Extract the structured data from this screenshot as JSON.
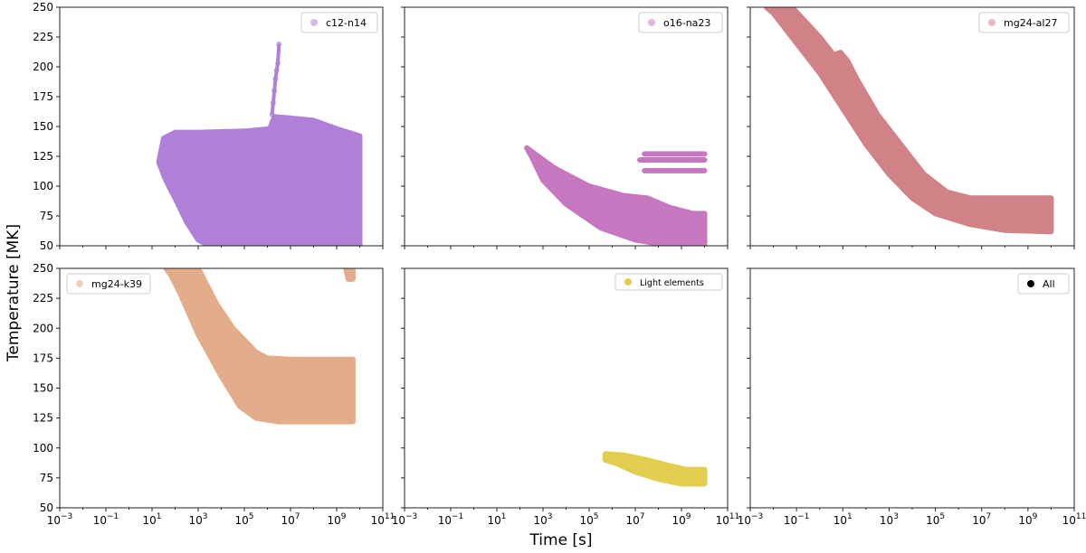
{
  "figure": {
    "ylabel": "Temperature [MK]",
    "xlabel": "Time [s]"
  },
  "chart_data": [
    {
      "type": "scatter",
      "panel": "top-left",
      "legend": "c12-n14",
      "legend_loc": "top-right",
      "color": "#b07fd8",
      "xscale": "log",
      "xlim_log10": [
        -3,
        11
      ],
      "ylim": [
        50,
        250
      ],
      "y_ticks": [
        "50",
        "75",
        "100",
        "125",
        "150",
        "175",
        "200",
        "225",
        "250"
      ],
      "x_ticks": [],
      "regions": [
        {
          "kind": "filled-band",
          "outline": [
            [
              1.3,
              120
            ],
            [
              1.5,
              140
            ],
            [
              2.0,
              145
            ],
            [
              3.0,
              145
            ],
            [
              5.0,
              146
            ],
            [
              6.1,
              148
            ],
            [
              6.3,
              158
            ],
            [
              7.0,
              157
            ],
            [
              8.0,
              155
            ],
            [
              9.0,
              148
            ],
            [
              10.0,
              142
            ],
            [
              10.0,
              50
            ],
            [
              3.5,
              50
            ],
            [
              3.0,
              55
            ],
            [
              2.5,
              70
            ],
            [
              2.0,
              90
            ],
            [
              1.6,
              105
            ]
          ]
        },
        {
          "kind": "spike",
          "points": [
            [
              6.2,
              160
            ],
            [
              6.25,
              170
            ],
            [
              6.3,
              180
            ],
            [
              6.35,
              190
            ],
            [
              6.4,
              197
            ],
            [
              6.45,
              203
            ],
            [
              6.5,
              219
            ]
          ]
        }
      ]
    },
    {
      "type": "scatter",
      "panel": "top-middle",
      "legend": "o16-na23",
      "legend_loc": "top-right",
      "color": "#c777c0",
      "xscale": "log",
      "xlim_log10": [
        -3,
        11
      ],
      "ylim": [
        50,
        250
      ],
      "y_ticks": [],
      "x_ticks": [],
      "regions": [
        {
          "kind": "filled-band",
          "outline": [
            [
              2.3,
              132
            ],
            [
              3.5,
              115
            ],
            [
              5.0,
              100
            ],
            [
              6.5,
              92
            ],
            [
              7.5,
              90
            ],
            [
              8.5,
              82
            ],
            [
              9.5,
              77
            ],
            [
              10.0,
              77
            ],
            [
              10.0,
              50
            ],
            [
              8.5,
              50
            ],
            [
              7.0,
              55
            ],
            [
              5.5,
              65
            ],
            [
              4.0,
              85
            ],
            [
              3.0,
              105
            ],
            [
              2.5,
              125
            ]
          ]
        },
        {
          "kind": "line",
          "points": [
            [
              7.4,
              127
            ],
            [
              10.0,
              127
            ]
          ]
        },
        {
          "kind": "line",
          "points": [
            [
              7.2,
              122
            ],
            [
              10.0,
              122
            ]
          ]
        },
        {
          "kind": "line",
          "points": [
            [
              7.4,
              113
            ],
            [
              10.0,
              113
            ]
          ]
        }
      ]
    },
    {
      "type": "scatter",
      "panel": "top-right",
      "legend": "mg24-al27",
      "legend_loc": "top-right",
      "color": "#d08287",
      "xscale": "log",
      "xlim_log10": [
        -3,
        11
      ],
      "ylim": [
        50,
        250
      ],
      "y_ticks": [],
      "x_ticks": [],
      "regions": [
        {
          "kind": "filled-band",
          "outline": [
            [
              -2.3,
              250
            ],
            [
              -1.2,
              250
            ],
            [
              0.0,
              225
            ],
            [
              0.6,
              210
            ],
            [
              0.9,
              212
            ],
            [
              1.2,
              205
            ],
            [
              1.6,
              190
            ],
            [
              2.5,
              160
            ],
            [
              3.5,
              135
            ],
            [
              4.5,
              110
            ],
            [
              5.5,
              95
            ],
            [
              6.5,
              90
            ],
            [
              8.0,
              90
            ],
            [
              10.0,
              90
            ],
            [
              10.0,
              62
            ],
            [
              8.0,
              63
            ],
            [
              6.5,
              68
            ],
            [
              5.0,
              77
            ],
            [
              4.0,
              90
            ],
            [
              3.0,
              110
            ],
            [
              2.0,
              135
            ],
            [
              1.0,
              165
            ],
            [
              0.0,
              195
            ],
            [
              -1.0,
              220
            ],
            [
              -2.0,
              245
            ]
          ]
        }
      ]
    },
    {
      "type": "scatter",
      "panel": "bottom-left",
      "legend": "mg24-k39",
      "legend_loc": "top-left",
      "color": "#e3ac8a",
      "xscale": "log",
      "xlim_log10": [
        -3,
        11
      ],
      "ylim": [
        50,
        250
      ],
      "y_ticks": [
        "50",
        "75",
        "100",
        "125",
        "150",
        "175",
        "200",
        "225",
        "250"
      ],
      "x_ticks": [
        "10−3",
        "10−1",
        "101",
        "103",
        "105",
        "107",
        "109",
        "1011"
      ],
      "regions": [
        {
          "kind": "filled-band",
          "outline": [
            [
              1.6,
              250
            ],
            [
              3.0,
              250
            ],
            [
              3.8,
              220
            ],
            [
              4.5,
              200
            ],
            [
              5.0,
              190
            ],
            [
              5.5,
              180
            ],
            [
              6.0,
              175
            ],
            [
              7.0,
              174
            ],
            [
              8.0,
              174
            ],
            [
              9.0,
              174
            ],
            [
              9.7,
              174
            ],
            [
              9.7,
              122
            ],
            [
              8.0,
              122
            ],
            [
              6.5,
              122
            ],
            [
              5.5,
              125
            ],
            [
              4.8,
              135
            ],
            [
              4.0,
              160
            ],
            [
              3.0,
              195
            ],
            [
              2.2,
              230
            ],
            [
              1.8,
              245
            ]
          ]
        },
        {
          "kind": "filled-band",
          "outline": [
            [
              9.4,
              250
            ],
            [
              9.7,
              250
            ],
            [
              9.7,
              241
            ],
            [
              9.5,
              241
            ]
          ]
        }
      ]
    },
    {
      "type": "scatter",
      "panel": "bottom-middle",
      "legend": "Light elements",
      "legend_loc": "top-right",
      "color": "#e2cd4f",
      "xscale": "log",
      "xlim_log10": [
        -3,
        11
      ],
      "ylim": [
        50,
        250
      ],
      "y_ticks": [],
      "x_ticks": [
        "10−3",
        "10−1",
        "101",
        "103",
        "105",
        "107",
        "109",
        "1011"
      ],
      "regions": [
        {
          "kind": "filled-band",
          "outline": [
            [
              5.7,
              95
            ],
            [
              6.5,
              94
            ],
            [
              7.5,
              90
            ],
            [
              8.5,
              85
            ],
            [
              9.2,
              82
            ],
            [
              10.0,
              82
            ],
            [
              10.0,
              70
            ],
            [
              9.0,
              70
            ],
            [
              8.0,
              74
            ],
            [
              7.0,
              80
            ],
            [
              6.2,
              87
            ],
            [
              5.7,
              90
            ]
          ]
        }
      ]
    },
    {
      "type": "scatter",
      "panel": "bottom-right",
      "legend": "All",
      "legend_loc": "top-right",
      "color": "#000000",
      "xscale": "log",
      "xlim_log10": [
        -3,
        11
      ],
      "ylim": [
        50,
        250
      ],
      "y_ticks": [],
      "x_ticks": [
        "10−3",
        "10−1",
        "101",
        "103",
        "105",
        "107",
        "109",
        "1011"
      ],
      "regions": []
    }
  ]
}
